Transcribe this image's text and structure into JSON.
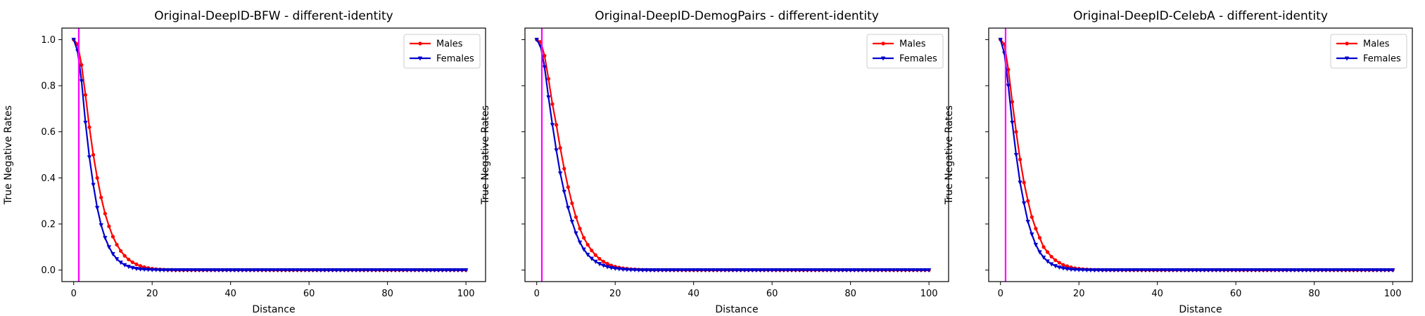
{
  "chart_data": [
    {
      "type": "line",
      "title": "Original-DeepID-BFW - different-identity",
      "xlabel": "Distance",
      "ylabel": "True Negative Rates",
      "xlim": [
        -3,
        105
      ],
      "ylim": [
        -0.05,
        1.05
      ],
      "xticks": [
        0,
        20,
        40,
        60,
        80,
        100
      ],
      "yticks": [
        0.0,
        0.2,
        0.4,
        0.6,
        0.8,
        1.0
      ],
      "ytick_labels_shown": true,
      "grid": false,
      "legend": "top-right",
      "threshold_line": {
        "x": 1.3,
        "color": "#ff00ff"
      },
      "x": [
        0,
        1,
        2,
        3,
        4,
        5,
        6,
        7,
        8,
        9,
        10,
        11,
        12,
        13,
        14,
        15,
        16,
        17,
        18,
        19,
        20,
        21,
        22,
        23,
        24,
        25,
        26,
        27,
        28,
        29,
        30,
        31,
        32,
        33,
        34,
        35,
        36,
        37,
        38,
        39,
        40,
        41,
        42,
        43,
        44,
        45,
        46,
        47,
        48,
        49,
        50,
        51,
        52,
        53,
        54,
        55,
        56,
        57,
        58,
        59,
        60,
        61,
        62,
        63,
        64,
        65,
        66,
        67,
        68,
        69,
        70,
        71,
        72,
        73,
        74,
        75,
        76,
        77,
        78,
        79,
        80,
        81,
        82,
        83,
        84,
        85,
        86,
        87,
        88,
        89,
        90,
        91,
        92,
        93,
        94,
        95,
        96,
        97,
        98,
        99,
        100
      ],
      "series": [
        {
          "name": "Males",
          "color": "#ff0000",
          "marker": "circle",
          "values": [
            1.0,
            0.98,
            0.89,
            0.76,
            0.62,
            0.5,
            0.4,
            0.315,
            0.245,
            0.19,
            0.145,
            0.11,
            0.083,
            0.062,
            0.046,
            0.034,
            0.025,
            0.018,
            0.013,
            0.009,
            0.006,
            0.004,
            0.003,
            0.002,
            0.001,
            0.001,
            0.0,
            0.0,
            0.0,
            0.0,
            0.0,
            0.0,
            0.0,
            0.0,
            0.0,
            0.0,
            0.0,
            0.0,
            0.0,
            0.0,
            0.0,
            0.0,
            0.0,
            0.0,
            0.0,
            0.0,
            0.0,
            0.0,
            0.0,
            0.0,
            0.0,
            0.0,
            0.0,
            0.0,
            0.0,
            0.0,
            0.0,
            0.0,
            0.0,
            0.0,
            0.0,
            0.0,
            0.0,
            0.0,
            0.0,
            0.0,
            0.0,
            0.0,
            0.0,
            0.0,
            0.0,
            0.0,
            0.0,
            0.0,
            0.0,
            0.0,
            0.0,
            0.0,
            0.0,
            0.0,
            0.0,
            0.0,
            0.0,
            0.0,
            0.0,
            0.0,
            0.0,
            0.0,
            0.0,
            0.0,
            0.0,
            0.0,
            0.0,
            0.0,
            0.0,
            0.0,
            0.0,
            0.0,
            0.0,
            0.0,
            0.0
          ]
        },
        {
          "name": "Females",
          "color": "#0000cc",
          "marker": "triangle-down",
          "values": [
            1.0,
            0.95,
            0.82,
            0.64,
            0.49,
            0.37,
            0.27,
            0.195,
            0.14,
            0.1,
            0.07,
            0.048,
            0.033,
            0.022,
            0.015,
            0.01,
            0.006,
            0.004,
            0.003,
            0.002,
            0.001,
            0.001,
            0.0,
            0.0,
            0.0,
            0.0,
            0.0,
            0.0,
            0.0,
            0.0,
            0.0,
            0.0,
            0.0,
            0.0,
            0.0,
            0.0,
            0.0,
            0.0,
            0.0,
            0.0,
            0.0,
            0.0,
            0.0,
            0.0,
            0.0,
            0.0,
            0.0,
            0.0,
            0.0,
            0.0,
            0.0,
            0.0,
            0.0,
            0.0,
            0.0,
            0.0,
            0.0,
            0.0,
            0.0,
            0.0,
            0.0,
            0.0,
            0.0,
            0.0,
            0.0,
            0.0,
            0.0,
            0.0,
            0.0,
            0.0,
            0.0,
            0.0,
            0.0,
            0.0,
            0.0,
            0.0,
            0.0,
            0.0,
            0.0,
            0.0,
            0.0,
            0.0,
            0.0,
            0.0,
            0.0,
            0.0,
            0.0,
            0.0,
            0.0,
            0.0,
            0.0,
            0.0,
            0.0,
            0.0,
            0.0,
            0.0,
            0.0,
            0.0,
            0.0,
            0.0,
            0.0
          ]
        }
      ]
    },
    {
      "type": "line",
      "title": "Original-DeepID-DemogPairs - different-identity",
      "xlabel": "Distance",
      "ylabel": "True Negative Rates",
      "xlim": [
        -3,
        105
      ],
      "ylim": [
        -0.05,
        1.05
      ],
      "xticks": [
        0,
        20,
        40,
        60,
        80,
        100
      ],
      "yticks": [
        0.0,
        0.2,
        0.4,
        0.6,
        0.8,
        1.0
      ],
      "ytick_labels_shown": false,
      "grid": false,
      "legend": "top-right",
      "threshold_line": {
        "x": 1.3,
        "color": "#ff00ff"
      },
      "x": [
        0,
        1,
        2,
        3,
        4,
        5,
        6,
        7,
        8,
        9,
        10,
        11,
        12,
        13,
        14,
        15,
        16,
        17,
        18,
        19,
        20,
        21,
        22,
        23,
        24,
        25,
        26,
        27,
        28,
        29,
        30,
        31,
        32,
        33,
        34,
        35,
        36,
        37,
        38,
        39,
        40,
        41,
        42,
        43,
        44,
        45,
        46,
        47,
        48,
        49,
        50,
        51,
        52,
        53,
        54,
        55,
        56,
        57,
        58,
        59,
        60,
        61,
        62,
        63,
        64,
        65,
        66,
        67,
        68,
        69,
        70,
        71,
        72,
        73,
        74,
        75,
        76,
        77,
        78,
        79,
        80,
        81,
        82,
        83,
        84,
        85,
        86,
        87,
        88,
        89,
        90,
        91,
        92,
        93,
        94,
        95,
        96,
        97,
        98,
        99,
        100
      ],
      "series": [
        {
          "name": "Males",
          "color": "#ff0000",
          "marker": "circle",
          "values": [
            1.0,
            0.99,
            0.93,
            0.83,
            0.72,
            0.63,
            0.53,
            0.44,
            0.36,
            0.29,
            0.23,
            0.18,
            0.14,
            0.11,
            0.085,
            0.065,
            0.049,
            0.037,
            0.028,
            0.02,
            0.015,
            0.011,
            0.008,
            0.006,
            0.004,
            0.003,
            0.002,
            0.001,
            0.001,
            0.0,
            0.0,
            0.0,
            0.0,
            0.0,
            0.0,
            0.0,
            0.0,
            0.0,
            0.0,
            0.0,
            0.0,
            0.0,
            0.0,
            0.0,
            0.0,
            0.0,
            0.0,
            0.0,
            0.0,
            0.0,
            0.0,
            0.0,
            0.0,
            0.0,
            0.0,
            0.0,
            0.0,
            0.0,
            0.0,
            0.0,
            0.0,
            0.0,
            0.0,
            0.0,
            0.0,
            0.0,
            0.0,
            0.0,
            0.0,
            0.0,
            0.0,
            0.0,
            0.0,
            0.0,
            0.0,
            0.0,
            0.0,
            0.0,
            0.0,
            0.0,
            0.0,
            0.0,
            0.0,
            0.0,
            0.0,
            0.0,
            0.0,
            0.0,
            0.0,
            0.0,
            0.0,
            0.0,
            0.0,
            0.0,
            0.0,
            0.0,
            0.0,
            0.0,
            0.0,
            0.0,
            0.0
          ]
        },
        {
          "name": "Females",
          "color": "#0000cc",
          "marker": "triangle-down",
          "values": [
            1.0,
            0.97,
            0.88,
            0.75,
            0.63,
            0.52,
            0.42,
            0.34,
            0.27,
            0.21,
            0.16,
            0.12,
            0.09,
            0.067,
            0.05,
            0.037,
            0.027,
            0.02,
            0.014,
            0.01,
            0.007,
            0.005,
            0.003,
            0.002,
            0.001,
            0.001,
            0.0,
            0.0,
            0.0,
            0.0,
            0.0,
            0.0,
            0.0,
            0.0,
            0.0,
            0.0,
            0.0,
            0.0,
            0.0,
            0.0,
            0.0,
            0.0,
            0.0,
            0.0,
            0.0,
            0.0,
            0.0,
            0.0,
            0.0,
            0.0,
            0.0,
            0.0,
            0.0,
            0.0,
            0.0,
            0.0,
            0.0,
            0.0,
            0.0,
            0.0,
            0.0,
            0.0,
            0.0,
            0.0,
            0.0,
            0.0,
            0.0,
            0.0,
            0.0,
            0.0,
            0.0,
            0.0,
            0.0,
            0.0,
            0.0,
            0.0,
            0.0,
            0.0,
            0.0,
            0.0,
            0.0,
            0.0,
            0.0,
            0.0,
            0.0,
            0.0,
            0.0,
            0.0,
            0.0,
            0.0,
            0.0,
            0.0,
            0.0,
            0.0,
            0.0,
            0.0,
            0.0,
            0.0,
            0.0,
            0.0,
            0.0
          ]
        }
      ]
    },
    {
      "type": "line",
      "title": "Original-DeepID-CelebA - different-identity",
      "xlabel": "Distance",
      "ylabel": "True Negative Rates",
      "xlim": [
        -3,
        105
      ],
      "ylim": [
        -0.05,
        1.05
      ],
      "xticks": [
        0,
        20,
        40,
        60,
        80,
        100
      ],
      "yticks": [
        0.0,
        0.2,
        0.4,
        0.6,
        0.8,
        1.0
      ],
      "ytick_labels_shown": false,
      "grid": false,
      "legend": "top-right",
      "threshold_line": {
        "x": 1.3,
        "color": "#ff00ff"
      },
      "x": [
        0,
        1,
        2,
        3,
        4,
        5,
        6,
        7,
        8,
        9,
        10,
        11,
        12,
        13,
        14,
        15,
        16,
        17,
        18,
        19,
        20,
        21,
        22,
        23,
        24,
        25,
        26,
        27,
        28,
        29,
        30,
        31,
        32,
        33,
        34,
        35,
        36,
        37,
        38,
        39,
        40,
        41,
        42,
        43,
        44,
        45,
        46,
        47,
        48,
        49,
        50,
        51,
        52,
        53,
        54,
        55,
        56,
        57,
        58,
        59,
        60,
        61,
        62,
        63,
        64,
        65,
        66,
        67,
        68,
        69,
        70,
        71,
        72,
        73,
        74,
        75,
        76,
        77,
        78,
        79,
        80,
        81,
        82,
        83,
        84,
        85,
        86,
        87,
        88,
        89,
        90,
        91,
        92,
        93,
        94,
        95,
        96,
        97,
        98,
        99,
        100
      ],
      "series": [
        {
          "name": "Males",
          "color": "#ff0000",
          "marker": "circle",
          "values": [
            1.0,
            0.98,
            0.87,
            0.73,
            0.6,
            0.48,
            0.38,
            0.3,
            0.23,
            0.18,
            0.14,
            0.1,
            0.078,
            0.058,
            0.043,
            0.032,
            0.023,
            0.017,
            0.012,
            0.008,
            0.006,
            0.004,
            0.003,
            0.002,
            0.001,
            0.001,
            0.0,
            0.0,
            0.0,
            0.0,
            0.0,
            0.0,
            0.0,
            0.0,
            0.0,
            0.0,
            0.0,
            0.0,
            0.0,
            0.0,
            0.0,
            0.0,
            0.0,
            0.0,
            0.0,
            0.0,
            0.0,
            0.0,
            0.0,
            0.0,
            0.0,
            0.0,
            0.0,
            0.0,
            0.0,
            0.0,
            0.0,
            0.0,
            0.0,
            0.0,
            0.0,
            0.0,
            0.0,
            0.0,
            0.0,
            0.0,
            0.0,
            0.0,
            0.0,
            0.0,
            0.0,
            0.0,
            0.0,
            0.0,
            0.0,
            0.0,
            0.0,
            0.0,
            0.0,
            0.0,
            0.0,
            0.0,
            0.0,
            0.0,
            0.0,
            0.0,
            0.0,
            0.0,
            0.0,
            0.0,
            0.0,
            0.0,
            0.0,
            0.0,
            0.0,
            0.0,
            0.0,
            0.0,
            0.0,
            0.0,
            0.0
          ]
        },
        {
          "name": "Females",
          "color": "#0000cc",
          "marker": "triangle-down",
          "values": [
            1.0,
            0.94,
            0.8,
            0.64,
            0.5,
            0.38,
            0.29,
            0.21,
            0.155,
            0.11,
            0.078,
            0.055,
            0.038,
            0.026,
            0.018,
            0.012,
            0.008,
            0.005,
            0.003,
            0.002,
            0.001,
            0.001,
            0.0,
            0.0,
            0.0,
            0.0,
            0.0,
            0.0,
            0.0,
            0.0,
            0.0,
            0.0,
            0.0,
            0.0,
            0.0,
            0.0,
            0.0,
            0.0,
            0.0,
            0.0,
            0.0,
            0.0,
            0.0,
            0.0,
            0.0,
            0.0,
            0.0,
            0.0,
            0.0,
            0.0,
            0.0,
            0.0,
            0.0,
            0.0,
            0.0,
            0.0,
            0.0,
            0.0,
            0.0,
            0.0,
            0.0,
            0.0,
            0.0,
            0.0,
            0.0,
            0.0,
            0.0,
            0.0,
            0.0,
            0.0,
            0.0,
            0.0,
            0.0,
            0.0,
            0.0,
            0.0,
            0.0,
            0.0,
            0.0,
            0.0,
            0.0,
            0.0,
            0.0,
            0.0,
            0.0,
            0.0,
            0.0,
            0.0,
            0.0,
            0.0,
            0.0,
            0.0,
            0.0,
            0.0,
            0.0,
            0.0,
            0.0,
            0.0,
            0.0,
            0.0,
            0.0
          ]
        }
      ]
    }
  ]
}
